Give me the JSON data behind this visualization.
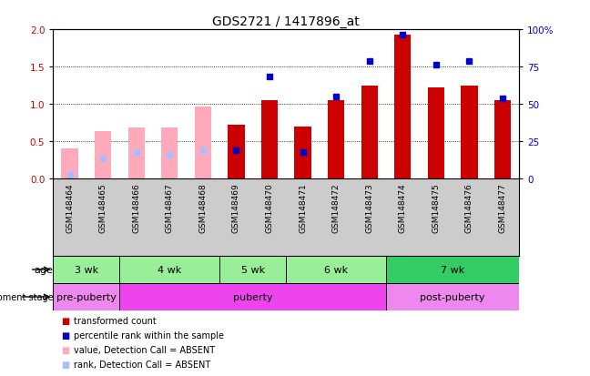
{
  "title": "GDS2721 / 1417896_at",
  "samples": [
    "GSM148464",
    "GSM148465",
    "GSM148466",
    "GSM148467",
    "GSM148468",
    "GSM148469",
    "GSM148470",
    "GSM148471",
    "GSM148472",
    "GSM148473",
    "GSM148474",
    "GSM148475",
    "GSM148476",
    "GSM148477"
  ],
  "red_values": [
    0.0,
    0.0,
    0.0,
    0.0,
    0.0,
    0.72,
    1.05,
    0.7,
    1.05,
    1.25,
    1.93,
    1.22,
    1.25,
    1.05
  ],
  "blue_values": [
    0.08,
    0.27,
    0.35,
    0.32,
    0.38,
    0.38,
    1.37,
    0.36,
    1.1,
    1.58,
    1.93,
    1.53,
    1.57,
    1.08
  ],
  "pink_values": [
    0.4,
    0.63,
    0.68,
    0.68,
    0.97,
    0.0,
    0.0,
    0.0,
    0.0,
    0.0,
    0.0,
    0.0,
    0.0,
    0.0
  ],
  "lightblue_values": [
    0.05,
    0.27,
    0.35,
    0.32,
    0.38,
    0.0,
    0.0,
    0.0,
    0.0,
    0.0,
    0.0,
    0.0,
    0.0,
    0.0
  ],
  "absent_mask": [
    true,
    true,
    true,
    true,
    true,
    false,
    false,
    false,
    false,
    false,
    false,
    false,
    false,
    false
  ],
  "age_groups": [
    {
      "label": "3 wk",
      "start": 0,
      "end": 1,
      "color": "#99ee99"
    },
    {
      "label": "4 wk",
      "start": 2,
      "end": 4,
      "color": "#99ee99"
    },
    {
      "label": "5 wk",
      "start": 5,
      "end": 6,
      "color": "#99ee99"
    },
    {
      "label": "6 wk",
      "start": 7,
      "end": 9,
      "color": "#99ee99"
    },
    {
      "label": "7 wk",
      "start": 10,
      "end": 13,
      "color": "#33cc66"
    }
  ],
  "dev_groups": [
    {
      "label": "pre-puberty",
      "start": 0,
      "end": 1,
      "color": "#ee88ee"
    },
    {
      "label": "puberty",
      "start": 2,
      "end": 9,
      "color": "#ee44ee"
    },
    {
      "label": "post-puberty",
      "start": 10,
      "end": 13,
      "color": "#ee88ee"
    }
  ],
  "ylim_left": [
    0,
    2
  ],
  "ylim_right": [
    0,
    100
  ],
  "yticks_left": [
    0,
    0.5,
    1.0,
    1.5,
    2.0
  ],
  "yticks_right": [
    0,
    25,
    50,
    75,
    100
  ],
  "ytick_labels_right": [
    "0",
    "25",
    "50",
    "75",
    "100%"
  ],
  "red_color": "#cc0000",
  "blue_color": "#0000cc",
  "pink_color": "#ffaabb",
  "lightblue_color": "#aabbff",
  "legend_items": [
    {
      "color": "#cc0000",
      "label": "transformed count"
    },
    {
      "color": "#0000cc",
      "label": "percentile rank within the sample"
    },
    {
      "color": "#ffaabb",
      "label": "value, Detection Call = ABSENT"
    },
    {
      "color": "#aabbff",
      "label": "rank, Detection Call = ABSENT"
    }
  ]
}
